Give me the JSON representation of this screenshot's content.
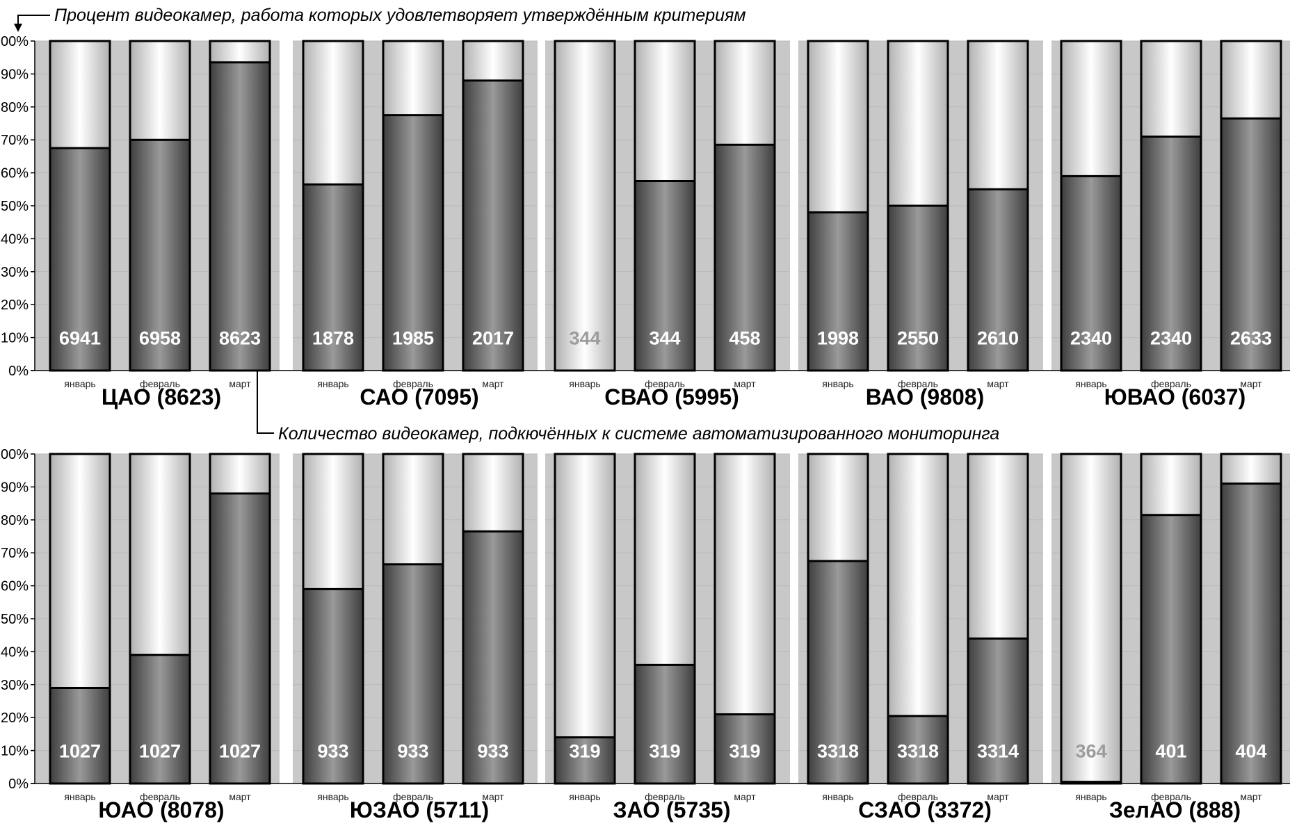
{
  "annotations": {
    "top": "Процент видеокамер, работа которых удовлетворяет утверждённым критериям",
    "middle": "Количество видеокамер, подкючённых к системе автоматизированного мониторинга"
  },
  "colors": {
    "panel_bg": "#c8c8c8",
    "bar_dark_center": "#9a9a9a",
    "bar_dark_edge": "#3e3e3e",
    "bar_light_center": "#ffffff",
    "bar_light_edge": "#b0b0b0",
    "label_normal": "#ffffff",
    "label_muted": "#9c9c9c"
  },
  "chart_data": {
    "type": "bar",
    "stacked": true,
    "yticks": [
      "0%",
      "10%",
      "20%",
      "30%",
      "40%",
      "50%",
      "60%",
      "70%",
      "80%",
      "90%",
      "100%"
    ],
    "ylim": [
      0,
      100
    ],
    "months": [
      "январь",
      "февраль",
      "март"
    ],
    "districts": [
      {
        "title": "ЦАО (8623)",
        "percent": [
          67.5,
          70,
          93.5
        ],
        "cameras": [
          "6941",
          "6958",
          "8623"
        ],
        "muted": [
          false,
          false,
          false
        ]
      },
      {
        "title": "САО (7095)",
        "percent": [
          56.5,
          77.5,
          88
        ],
        "cameras": [
          "1878",
          "1985",
          "2017"
        ],
        "muted": [
          false,
          false,
          false
        ]
      },
      {
        "title": "СВАО (5995)",
        "percent": [
          0,
          57.5,
          68.5
        ],
        "cameras": [
          "344",
          "344",
          "458"
        ],
        "muted": [
          true,
          false,
          false
        ]
      },
      {
        "title": "ВАО (9808)",
        "percent": [
          48,
          50,
          55
        ],
        "cameras": [
          "1998",
          "2550",
          "2610"
        ],
        "muted": [
          false,
          false,
          false
        ]
      },
      {
        "title": "ЮВАО (6037)",
        "percent": [
          59,
          71,
          76.5
        ],
        "cameras": [
          "2340",
          "2340",
          "2633"
        ],
        "muted": [
          false,
          false,
          false
        ]
      },
      {
        "title": "ЮАО (8078)",
        "percent": [
          29,
          39,
          88
        ],
        "cameras": [
          "1027",
          "1027",
          "1027"
        ],
        "muted": [
          false,
          false,
          false
        ]
      },
      {
        "title": "ЮЗАО (5711)",
        "percent": [
          59,
          66.5,
          76.5
        ],
        "cameras": [
          "933",
          "933",
          "933"
        ],
        "muted": [
          false,
          false,
          false
        ]
      },
      {
        "title": "ЗАО (5735)",
        "percent": [
          14,
          36,
          21
        ],
        "cameras": [
          "319",
          "319",
          "319"
        ],
        "muted": [
          false,
          false,
          false
        ]
      },
      {
        "title": "СЗАО (3372)",
        "percent": [
          67.5,
          20.5,
          44
        ],
        "cameras": [
          "3318",
          "3318",
          "3314"
        ],
        "muted": [
          false,
          false,
          false
        ]
      },
      {
        "title": "ЗелАО (888)",
        "percent": [
          0.5,
          81.5,
          91
        ],
        "cameras": [
          "364",
          "401",
          "404"
        ],
        "muted": [
          true,
          false,
          false
        ]
      }
    ]
  }
}
